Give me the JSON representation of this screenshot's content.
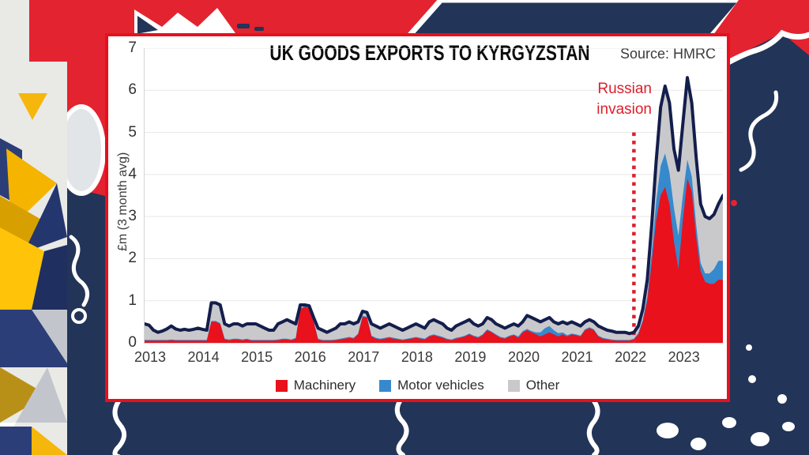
{
  "chart_data": {
    "type": "area",
    "stacked": true,
    "title": "UK GOODS EXPORTS TO KYRGYZSTAN",
    "source_label": "Source: HMRC",
    "ylabel": "£m (3 month avg)",
    "ylim": [
      0,
      7
    ],
    "y_ticks": [
      0,
      1,
      2,
      3,
      4,
      5,
      6,
      7
    ],
    "x_ticks": [
      "2013",
      "2014",
      "2015",
      "2016",
      "2017",
      "2018",
      "2019",
      "2020",
      "2021",
      "2022",
      "2023"
    ],
    "x_start": "2013-01",
    "x_freq": "monthly",
    "grid": "horizontal",
    "legend_position": "bottom",
    "total_line_color": "#141e4c",
    "annotation": {
      "lines": [
        "Russian",
        "invasion"
      ],
      "label": "Russian invasion",
      "color": "#dd1f2c",
      "x_month_index": 110,
      "line_top_value": 5,
      "style": "dotted-vertical-line"
    },
    "series": [
      {
        "name": "Machinery",
        "color": "#e8111c",
        "values": [
          0.05,
          0.05,
          0.05,
          0.05,
          0.05,
          0.05,
          0.06,
          0.05,
          0.05,
          0.05,
          0.05,
          0.05,
          0.05,
          0.05,
          0.05,
          0.5,
          0.5,
          0.45,
          0.08,
          0.06,
          0.08,
          0.08,
          0.06,
          0.08,
          0.05,
          0.05,
          0.05,
          0.05,
          0.05,
          0.05,
          0.06,
          0.08,
          0.08,
          0.06,
          0.1,
          0.8,
          0.85,
          0.82,
          0.5,
          0.08,
          0.05,
          0.05,
          0.05,
          0.06,
          0.08,
          0.1,
          0.12,
          0.1,
          0.2,
          0.62,
          0.6,
          0.15,
          0.1,
          0.08,
          0.1,
          0.12,
          0.1,
          0.08,
          0.06,
          0.08,
          0.1,
          0.12,
          0.1,
          0.08,
          0.15,
          0.18,
          0.15,
          0.12,
          0.08,
          0.06,
          0.1,
          0.12,
          0.15,
          0.2,
          0.15,
          0.12,
          0.18,
          0.3,
          0.25,
          0.18,
          0.12,
          0.1,
          0.15,
          0.18,
          0.12,
          0.25,
          0.3,
          0.25,
          0.2,
          0.15,
          0.2,
          0.25,
          0.2,
          0.15,
          0.2,
          0.15,
          0.2,
          0.18,
          0.15,
          0.3,
          0.35,
          0.3,
          0.15,
          0.1,
          0.08,
          0.06,
          0.05,
          0.05,
          0.05,
          0.05,
          0.08,
          0.2,
          0.5,
          1.0,
          1.9,
          2.9,
          3.5,
          3.7,
          3.3,
          2.4,
          1.75,
          2.9,
          3.9,
          3.6,
          2.5,
          1.7,
          1.45,
          1.4,
          1.4,
          1.5,
          1.5
        ]
      },
      {
        "name": "Motor vehicles",
        "color": "#3789cd",
        "values": [
          0.02,
          0.02,
          0.02,
          0.02,
          0.02,
          0.02,
          0.02,
          0.02,
          0.02,
          0.02,
          0.02,
          0.02,
          0.02,
          0.02,
          0.02,
          0.02,
          0.02,
          0.02,
          0.02,
          0.02,
          0.02,
          0.02,
          0.02,
          0.02,
          0.02,
          0.02,
          0.02,
          0.02,
          0.02,
          0.02,
          0.02,
          0.02,
          0.02,
          0.02,
          0.02,
          0.02,
          0.02,
          0.02,
          0.02,
          0.02,
          0.02,
          0.02,
          0.02,
          0.02,
          0.02,
          0.02,
          0.02,
          0.02,
          0.02,
          0.02,
          0.02,
          0.02,
          0.02,
          0.02,
          0.02,
          0.02,
          0.02,
          0.02,
          0.02,
          0.02,
          0.02,
          0.02,
          0.02,
          0.02,
          0.02,
          0.02,
          0.02,
          0.02,
          0.02,
          0.02,
          0.02,
          0.02,
          0.02,
          0.02,
          0.02,
          0.02,
          0.02,
          0.02,
          0.02,
          0.02,
          0.02,
          0.02,
          0.02,
          0.02,
          0.03,
          0.03,
          0.03,
          0.03,
          0.05,
          0.1,
          0.15,
          0.15,
          0.1,
          0.08,
          0.05,
          0.03,
          0.02,
          0.02,
          0.02,
          0.02,
          0.02,
          0.02,
          0.02,
          0.02,
          0.02,
          0.02,
          0.02,
          0.02,
          0.02,
          0.02,
          0.02,
          0.03,
          0.05,
          0.1,
          0.25,
          0.45,
          0.7,
          0.8,
          0.75,
          0.8,
          0.8,
          0.6,
          0.45,
          0.35,
          0.3,
          0.2,
          0.2,
          0.25,
          0.35,
          0.45,
          0.45
        ]
      },
      {
        "name": "Other",
        "color": "#c9c9cc",
        "values": [
          0.38,
          0.35,
          0.23,
          0.18,
          0.21,
          0.26,
          0.32,
          0.26,
          0.23,
          0.25,
          0.23,
          0.25,
          0.28,
          0.25,
          0.23,
          0.43,
          0.43,
          0.43,
          0.35,
          0.32,
          0.35,
          0.35,
          0.32,
          0.35,
          0.38,
          0.38,
          0.33,
          0.28,
          0.23,
          0.23,
          0.37,
          0.4,
          0.45,
          0.42,
          0.33,
          0.08,
          0.03,
          0.04,
          0.08,
          0.25,
          0.23,
          0.18,
          0.23,
          0.27,
          0.35,
          0.33,
          0.36,
          0.33,
          0.28,
          0.11,
          0.1,
          0.28,
          0.28,
          0.25,
          0.28,
          0.31,
          0.28,
          0.25,
          0.22,
          0.25,
          0.28,
          0.31,
          0.28,
          0.25,
          0.33,
          0.35,
          0.33,
          0.31,
          0.25,
          0.22,
          0.28,
          0.31,
          0.33,
          0.33,
          0.28,
          0.26,
          0.25,
          0.28,
          0.28,
          0.25,
          0.26,
          0.23,
          0.23,
          0.25,
          0.25,
          0.22,
          0.32,
          0.32,
          0.3,
          0.25,
          0.2,
          0.2,
          0.2,
          0.22,
          0.25,
          0.27,
          0.28,
          0.25,
          0.23,
          0.18,
          0.18,
          0.18,
          0.23,
          0.23,
          0.2,
          0.2,
          0.18,
          0.18,
          0.18,
          0.15,
          0.15,
          0.17,
          0.25,
          0.4,
          0.65,
          0.95,
          1.4,
          1.6,
          1.65,
          1.4,
          1.55,
          1.7,
          1.95,
          1.75,
          1.6,
          1.4,
          1.35,
          1.3,
          1.3,
          1.35,
          1.55
        ]
      }
    ]
  }
}
